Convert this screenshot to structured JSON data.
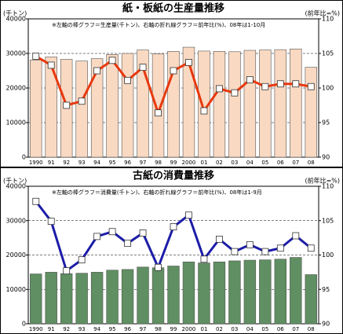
{
  "chart_data": [
    {
      "type": "combo",
      "title": "紙・板紙の生産量推移",
      "note": "※左軸の棒グラフ＝生産量(千トン)、右軸の折れ線グラフ＝前年比(%)、08年は1-10月",
      "ylabel": "(千トン)",
      "y2label": "(前年比=%)",
      "categories": [
        "1990",
        "91",
        "92",
        "93",
        "94",
        "95",
        "96",
        "97",
        "98",
        "99",
        "2000",
        "01",
        "02",
        "03",
        "04",
        "05",
        "06",
        "07",
        "08"
      ],
      "series": [
        {
          "type": "bar",
          "color": "#f9d9c2",
          "values": [
            28100,
            29000,
            28300,
            27800,
            28500,
            29700,
            30000,
            31000,
            29900,
            30600,
            31800,
            30700,
            30600,
            30500,
            30900,
            31000,
            31100,
            31300,
            26000
          ]
        },
        {
          "type": "line",
          "axis": "y2",
          "color": "#e8380d",
          "values": [
            104.6,
            103.3,
            97.5,
            98.1,
            102.5,
            104,
            101.1,
            103,
            96.4,
            102.5,
            103.7,
            96.7,
            99.9,
            99.3,
            101.2,
            100.2,
            100.6,
            100.6,
            100.2
          ]
        }
      ],
      "ylim": [
        0,
        40000
      ],
      "yticks": [
        0,
        10000,
        20000,
        30000,
        40000
      ],
      "y2lim": [
        90,
        110
      ],
      "y2ticks": [
        90,
        95,
        100,
        105,
        110
      ],
      "grid": true
    },
    {
      "type": "combo",
      "title": "古紙の消費量推移",
      "note": "※左軸の棒グラフ＝消費量(千トン)、右軸の折れ線グラフ＝前年比(%)、08年は1-9月",
      "ylabel": "(千トン)",
      "y2label": "(前年比=%)",
      "categories": [
        "1990",
        "91",
        "92",
        "93",
        "94",
        "95",
        "96",
        "97",
        "98",
        "99",
        "2000",
        "01",
        "02",
        "03",
        "04",
        "05",
        "06",
        "07",
        "08"
      ],
      "series": [
        {
          "type": "bar",
          "color": "#5f8f62",
          "values": [
            14500,
            15000,
            14600,
            14700,
            15000,
            15600,
            15800,
            16500,
            16300,
            16800,
            18000,
            17700,
            18000,
            18300,
            18500,
            18600,
            18800,
            19300,
            14300
          ]
        },
        {
          "type": "line",
          "axis": "y2",
          "color": "#1c1ca8",
          "values": [
            107.8,
            104.9,
            97.7,
            99.3,
            102.7,
            103.4,
            101.7,
            103.2,
            98.2,
            104.1,
            105.8,
            99.4,
            102.3,
            100.5,
            101.5,
            100.5,
            101,
            102.8,
            101
          ]
        }
      ],
      "ylim": [
        0,
        40000
      ],
      "yticks": [
        0,
        10000,
        20000,
        30000,
        40000
      ],
      "y2lim": [
        90,
        110
      ],
      "y2ticks": [
        90,
        95,
        100,
        105,
        110
      ],
      "grid": true
    }
  ]
}
